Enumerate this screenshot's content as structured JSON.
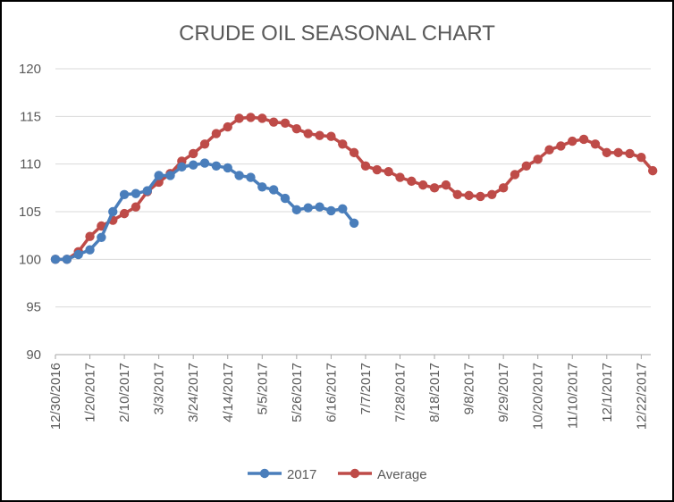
{
  "chart_data": {
    "type": "line",
    "title": "CRUDE OIL SEASONAL CHART",
    "xlabel": "",
    "ylabel": "",
    "ylim": [
      90,
      120
    ],
    "yticks": [
      90,
      95,
      100,
      105,
      110,
      115,
      120
    ],
    "x_tick_labels": [
      "12/30/2016",
      "1/20/2017",
      "2/10/2017",
      "3/3/2017",
      "3/24/2017",
      "4/14/2017",
      "5/5/2017",
      "5/26/2017",
      "6/16/2017",
      "7/7/2017",
      "7/28/2017",
      "8/18/2017",
      "9/8/2017",
      "9/29/2017",
      "10/20/2017",
      "11/10/2017",
      "12/1/2017",
      "12/22/2017"
    ],
    "grid": "horizontal",
    "legend": "bottom",
    "series": [
      {
        "name": "2017",
        "color": "#4A7EBB",
        "values": [
          100.0,
          100.0,
          100.5,
          101.0,
          102.3,
          105.0,
          106.8,
          106.9,
          107.2,
          108.8,
          108.8,
          109.7,
          109.9,
          110.1,
          109.8,
          109.6,
          108.8,
          108.6,
          107.6,
          107.3,
          106.4,
          105.2,
          105.4,
          105.5,
          105.1,
          105.3,
          103.8
        ]
      },
      {
        "name": "Average",
        "color": "#BE4B48",
        "values": [
          100.0,
          100.0,
          100.8,
          102.4,
          103.5,
          104.1,
          104.8,
          105.5,
          107.1,
          108.1,
          109.0,
          110.3,
          111.1,
          112.1,
          113.2,
          113.9,
          114.8,
          114.9,
          114.8,
          114.4,
          114.3,
          113.7,
          113.2,
          113.0,
          112.9,
          112.1,
          111.2,
          109.8,
          109.4,
          109.2,
          108.6,
          108.2,
          107.8,
          107.5,
          107.8,
          106.8,
          106.7,
          106.6,
          106.8,
          107.5,
          108.9,
          109.8,
          110.5,
          111.5,
          111.9,
          112.4,
          112.6,
          112.1,
          111.2,
          111.2,
          111.1,
          110.7,
          109.3
        ]
      }
    ]
  }
}
